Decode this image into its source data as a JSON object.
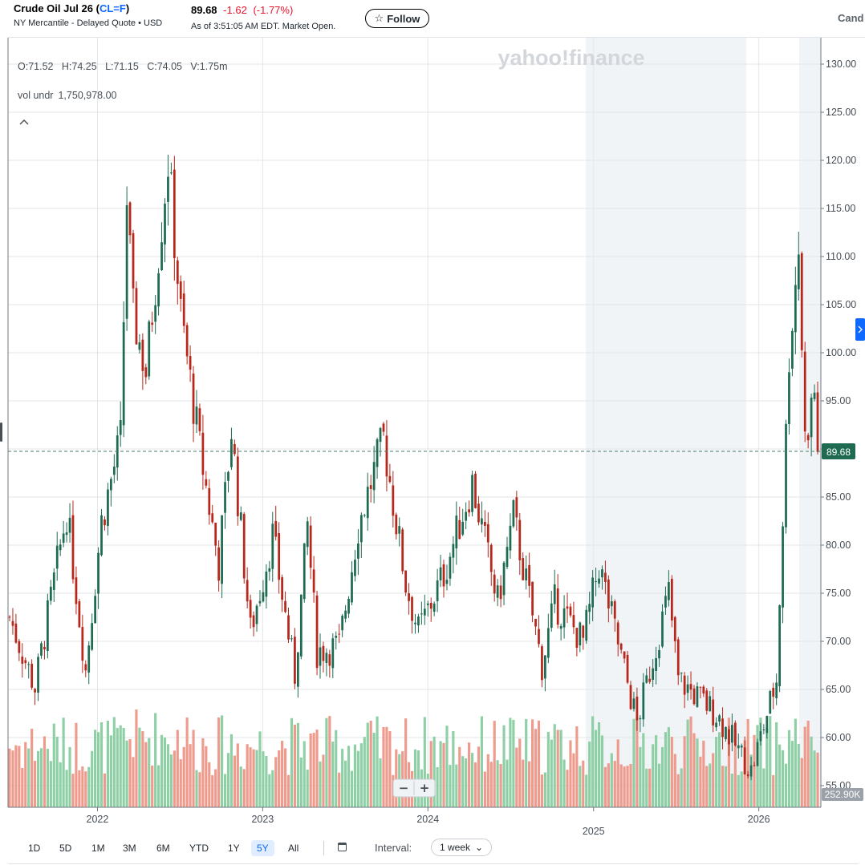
{
  "header": {
    "name": "Crude Oil Jul 26",
    "symbol": "CL=F",
    "exchange": "NY Mercantile - Delayed Quote • USD",
    "price": "89.68",
    "change": "-1.62",
    "change_pct": "(-1.77%)",
    "as_of": "As of 3:51:05 AM EDT. Market Open.",
    "follow_label": "Follow",
    "chart_type_label": "Cand"
  },
  "ohlc_readout": {
    "text": "O:71.52   H:74.25   L:71.15   C:74.05   V:1.75m",
    "vol_label": "vol undr",
    "vol_value": "1,750,978.00"
  },
  "watermark": "yahoo!finance",
  "zoom": {
    "minus": "−",
    "plus": "+"
  },
  "colors": {
    "up": "#1e6b52",
    "down": "#b7271b",
    "up_vol": "#8ecfa6",
    "down_vol": "#ee9a8c",
    "accent": "#0f69ff"
  },
  "toolbar": {
    "ranges": [
      {
        "label": "1D"
      },
      {
        "label": "5D"
      },
      {
        "label": "1M"
      },
      {
        "label": "3M"
      },
      {
        "label": "6M"
      },
      {
        "label": "YTD"
      },
      {
        "label": "1Y"
      },
      {
        "label": "5Y",
        "active": true
      },
      {
        "label": "All"
      }
    ],
    "interval_label": "Interval:",
    "interval_value": "1 week"
  },
  "chart_data": {
    "type": "candlestick",
    "interval": "1 week",
    "x_ticks": [
      "2022",
      "2023",
      "2024",
      "2025",
      "2026"
    ],
    "y_ticks": [
      "130.00",
      "125.00",
      "120.00",
      "115.00",
      "110.00",
      "105.00",
      "100.00",
      "95.00",
      "90.00",
      "85.00",
      "80.00",
      "75.00",
      "70.00",
      "65.00",
      "60.00",
      "55.00"
    ],
    "ylim": [
      55,
      131
    ],
    "last_price_label": "89.68",
    "volume_label": "252.90K",
    "x_range": [
      "2021-06-21",
      "2026-05-11"
    ],
    "grid": true,
    "closes": [
      {
        "d": "2021-06-21",
        "c": 72.5
      },
      {
        "d": "2021-08-16",
        "c": 65.2
      },
      {
        "d": "2021-10-25",
        "c": 83.5
      },
      {
        "d": "2021-12-06",
        "c": 67.0
      },
      {
        "d": "2022-01-10",
        "c": 82.5
      },
      {
        "d": "2022-02-21",
        "c": 91.0
      },
      {
        "d": "2022-03-07",
        "c": 116.0
      },
      {
        "d": "2022-03-21",
        "c": 104.0
      },
      {
        "d": "2022-04-18",
        "c": 98.0
      },
      {
        "d": "2022-06-06",
        "c": 120.0
      },
      {
        "d": "2022-07-04",
        "c": 104.0
      },
      {
        "d": "2022-08-15",
        "c": 90.0
      },
      {
        "d": "2022-09-26",
        "c": 78.0
      },
      {
        "d": "2022-10-24",
        "c": 92.0
      },
      {
        "d": "2022-12-05",
        "c": 71.0
      },
      {
        "d": "2023-01-23",
        "c": 81.0
      },
      {
        "d": "2023-03-13",
        "c": 66.5
      },
      {
        "d": "2023-04-10",
        "c": 82.0
      },
      {
        "d": "2023-05-01",
        "c": 69.0
      },
      {
        "d": "2023-06-19",
        "c": 69.5
      },
      {
        "d": "2023-07-31",
        "c": 82.0
      },
      {
        "d": "2023-09-25",
        "c": 91.0
      },
      {
        "d": "2023-11-13",
        "c": 76.0
      },
      {
        "d": "2023-12-11",
        "c": 71.0
      },
      {
        "d": "2024-02-05",
        "c": 77.0
      },
      {
        "d": "2024-04-08",
        "c": 86.5
      },
      {
        "d": "2024-06-03",
        "c": 74.0
      },
      {
        "d": "2024-07-08",
        "c": 83.0
      },
      {
        "d": "2024-09-09",
        "c": 67.5
      },
      {
        "d": "2024-10-07",
        "c": 74.0
      },
      {
        "d": "2024-12-09",
        "c": 70.0
      },
      {
        "d": "2025-01-13",
        "c": 78.0
      },
      {
        "d": "2025-04-07",
        "c": 61.5
      },
      {
        "d": "2025-06-16",
        "c": 75.0
      },
      {
        "d": "2025-07-07",
        "c": 66.0
      },
      {
        "d": "2025-09-29",
        "c": 62.5
      },
      {
        "d": "2025-12-15",
        "c": 56.5
      },
      {
        "d": "2026-02-09",
        "c": 66.0
      },
      {
        "d": "2026-03-09",
        "c": 100.0
      },
      {
        "d": "2026-03-30",
        "c": 111.0
      },
      {
        "d": "2026-04-13",
        "c": 91.0
      },
      {
        "d": "2026-05-04",
        "c": 96.0
      },
      {
        "d": "2026-05-11",
        "c": 89.68
      }
    ]
  }
}
